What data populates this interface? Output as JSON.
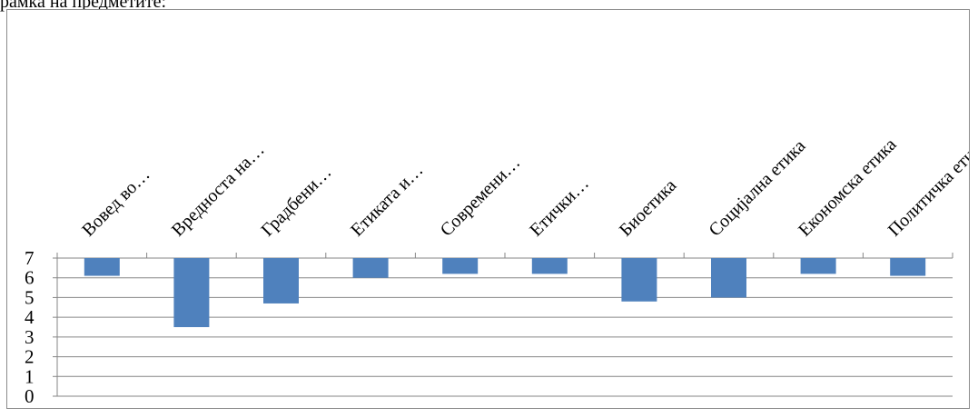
{
  "top_text": "рамка на предметите:",
  "chart_data": {
    "type": "bar",
    "title": "",
    "xlabel": "",
    "ylabel": "",
    "ylim": [
      0,
      7
    ],
    "yticks": [
      "0",
      "1",
      "2",
      "3",
      "4",
      "5",
      "6",
      "7"
    ],
    "grid": true,
    "legend": "none",
    "bar_color": "#4f81bd",
    "categories": [
      "Вовед во…",
      "Вредноста на…",
      "Градбени…",
      "Етиката и…",
      "Современи…",
      "Етички…",
      "Биоетика",
      "Социјална етика",
      "Економска етика",
      "Политичка етика"
    ],
    "values": [
      6.1,
      3.5,
      4.7,
      6.0,
      6.2,
      6.2,
      4.8,
      5.0,
      6.2,
      6.1
    ]
  }
}
